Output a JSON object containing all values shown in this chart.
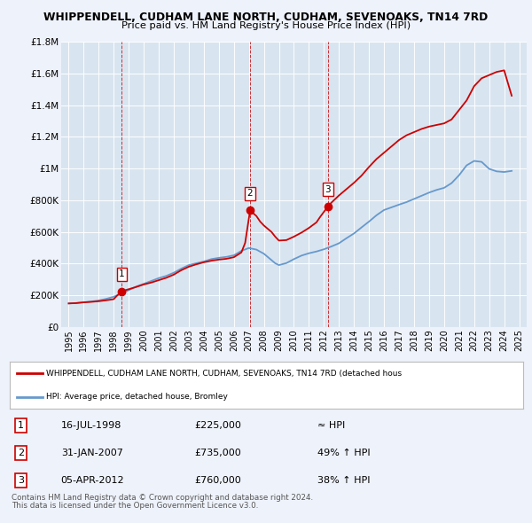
{
  "title": "WHIPPENDELL, CUDHAM LANE NORTH, CUDHAM, SEVENOAKS, TN14 7RD",
  "subtitle": "Price paid vs. HM Land Registry's House Price Index (HPI)",
  "background_color": "#eef2fa",
  "plot_background": "#d8e4f0",
  "ylim": [
    0,
    1800000
  ],
  "yticks": [
    0,
    200000,
    400000,
    600000,
    800000,
    1000000,
    1200000,
    1400000,
    1600000,
    1800000
  ],
  "ytick_labels": [
    "£0",
    "£200K",
    "£400K",
    "£600K",
    "£800K",
    "£1M",
    "£1.2M",
    "£1.4M",
    "£1.6M",
    "£1.8M"
  ],
  "xlim_start": 1994.5,
  "xlim_end": 2025.5,
  "red_line_color": "#cc0000",
  "blue_line_color": "#6699cc",
  "sale_marker_color": "#cc0000",
  "sale_points": [
    {
      "year": 1998.54,
      "price": 225000,
      "label": "1"
    },
    {
      "year": 2007.08,
      "price": 735000,
      "label": "2"
    },
    {
      "year": 2012.26,
      "price": 760000,
      "label": "3"
    }
  ],
  "legend_red_label": "WHIPPENDELL, CUDHAM LANE NORTH, CUDHAM, SEVENOAKS, TN14 7RD (detached hous",
  "legend_blue_label": "HPI: Average price, detached house, Bromley",
  "table_rows": [
    {
      "num": "1",
      "date": "16-JUL-1998",
      "price": "£225,000",
      "hpi": "≈ HPI"
    },
    {
      "num": "2",
      "date": "31-JAN-2007",
      "price": "£735,000",
      "hpi": "49% ↑ HPI"
    },
    {
      "num": "3",
      "date": "05-APR-2012",
      "price": "£760,000",
      "hpi": "38% ↑ HPI"
    }
  ],
  "footnote1": "Contains HM Land Registry data © Crown copyright and database right 2024.",
  "footnote2": "This data is licensed under the Open Government Licence v3.0.",
  "red_line_data": [
    [
      1995.0,
      148000
    ],
    [
      1995.5,
      150000
    ],
    [
      1996.0,
      155000
    ],
    [
      1996.5,
      158000
    ],
    [
      1997.0,
      162000
    ],
    [
      1997.5,
      168000
    ],
    [
      1998.0,
      175000
    ],
    [
      1998.25,
      200000
    ],
    [
      1998.54,
      225000
    ],
    [
      1999.0,
      238000
    ],
    [
      1999.5,
      252000
    ],
    [
      2000.0,
      268000
    ],
    [
      2000.5,
      280000
    ],
    [
      2001.0,
      295000
    ],
    [
      2001.5,
      310000
    ],
    [
      2002.0,
      330000
    ],
    [
      2002.5,
      358000
    ],
    [
      2003.0,
      380000
    ],
    [
      2003.5,
      395000
    ],
    [
      2004.0,
      408000
    ],
    [
      2004.5,
      418000
    ],
    [
      2005.0,
      425000
    ],
    [
      2005.5,
      430000
    ],
    [
      2006.0,
      440000
    ],
    [
      2006.5,
      470000
    ],
    [
      2006.75,
      530000
    ],
    [
      2007.08,
      735000
    ],
    [
      2007.5,
      700000
    ],
    [
      2007.75,
      665000
    ],
    [
      2008.0,
      640000
    ],
    [
      2008.5,
      600000
    ],
    [
      2008.75,
      570000
    ],
    [
      2009.0,
      545000
    ],
    [
      2009.5,
      548000
    ],
    [
      2010.0,
      570000
    ],
    [
      2010.5,
      595000
    ],
    [
      2011.0,
      625000
    ],
    [
      2011.5,
      660000
    ],
    [
      2011.75,
      695000
    ],
    [
      2012.26,
      760000
    ],
    [
      2012.5,
      785000
    ],
    [
      2013.0,
      830000
    ],
    [
      2013.5,
      870000
    ],
    [
      2014.0,
      910000
    ],
    [
      2014.5,
      955000
    ],
    [
      2015.0,
      1010000
    ],
    [
      2015.5,
      1060000
    ],
    [
      2016.0,
      1100000
    ],
    [
      2016.5,
      1140000
    ],
    [
      2017.0,
      1180000
    ],
    [
      2017.5,
      1210000
    ],
    [
      2018.0,
      1230000
    ],
    [
      2018.5,
      1250000
    ],
    [
      2019.0,
      1265000
    ],
    [
      2019.5,
      1275000
    ],
    [
      2020.0,
      1285000
    ],
    [
      2020.5,
      1310000
    ],
    [
      2021.0,
      1370000
    ],
    [
      2021.5,
      1430000
    ],
    [
      2022.0,
      1520000
    ],
    [
      2022.5,
      1570000
    ],
    [
      2023.0,
      1590000
    ],
    [
      2023.5,
      1610000
    ],
    [
      2024.0,
      1620000
    ],
    [
      2024.5,
      1460000
    ]
  ],
  "blue_line_data": [
    [
      1995.0,
      148000
    ],
    [
      1995.5,
      151000
    ],
    [
      1996.0,
      155000
    ],
    [
      1996.5,
      160000
    ],
    [
      1997.0,
      167000
    ],
    [
      1997.5,
      177000
    ],
    [
      1998.0,
      190000
    ],
    [
      1998.5,
      210000
    ],
    [
      1999.0,
      232000
    ],
    [
      1999.5,
      255000
    ],
    [
      2000.0,
      272000
    ],
    [
      2000.5,
      290000
    ],
    [
      2001.0,
      308000
    ],
    [
      2001.5,
      322000
    ],
    [
      2002.0,
      342000
    ],
    [
      2002.5,
      368000
    ],
    [
      2003.0,
      390000
    ],
    [
      2003.5,
      402000
    ],
    [
      2004.0,
      413000
    ],
    [
      2004.5,
      428000
    ],
    [
      2005.0,
      436000
    ],
    [
      2005.5,
      442000
    ],
    [
      2006.0,
      452000
    ],
    [
      2006.5,
      480000
    ],
    [
      2007.0,
      498000
    ],
    [
      2007.5,
      488000
    ],
    [
      2008.0,
      462000
    ],
    [
      2008.5,
      422000
    ],
    [
      2008.75,
      402000
    ],
    [
      2009.0,
      390000
    ],
    [
      2009.5,
      403000
    ],
    [
      2010.0,
      428000
    ],
    [
      2010.5,
      450000
    ],
    [
      2011.0,
      465000
    ],
    [
      2011.5,
      476000
    ],
    [
      2012.0,
      490000
    ],
    [
      2012.5,
      508000
    ],
    [
      2013.0,
      528000
    ],
    [
      2013.5,
      560000
    ],
    [
      2014.0,
      590000
    ],
    [
      2014.5,
      628000
    ],
    [
      2015.0,
      665000
    ],
    [
      2015.5,
      705000
    ],
    [
      2016.0,
      738000
    ],
    [
      2016.5,
      755000
    ],
    [
      2017.0,
      772000
    ],
    [
      2017.5,
      788000
    ],
    [
      2018.0,
      808000
    ],
    [
      2018.5,
      828000
    ],
    [
      2019.0,
      848000
    ],
    [
      2019.5,
      865000
    ],
    [
      2020.0,
      878000
    ],
    [
      2020.5,
      908000
    ],
    [
      2021.0,
      958000
    ],
    [
      2021.5,
      1020000
    ],
    [
      2022.0,
      1048000
    ],
    [
      2022.5,
      1042000
    ],
    [
      2023.0,
      998000
    ],
    [
      2023.5,
      982000
    ],
    [
      2024.0,
      978000
    ],
    [
      2024.5,
      985000
    ]
  ]
}
